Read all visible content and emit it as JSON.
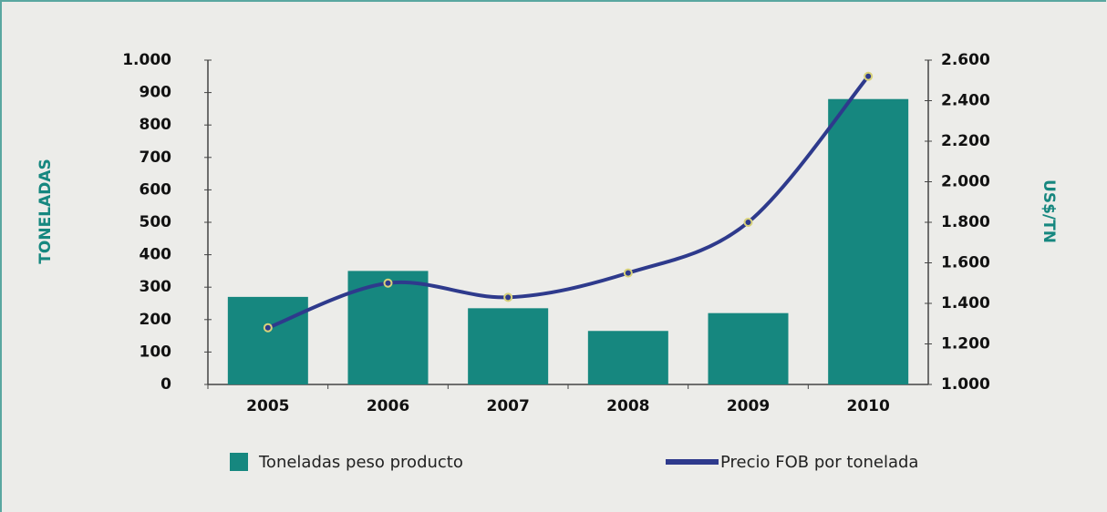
{
  "chart_data": {
    "type": "bar",
    "categories": [
      "2005",
      "2006",
      "2007",
      "2008",
      "2009",
      "2010"
    ],
    "series": [
      {
        "name": "Toneladas peso producto",
        "type": "bar",
        "color": "#16877f",
        "values": [
          270,
          350,
          235,
          165,
          220,
          880
        ]
      },
      {
        "name": "Precio FOB por tonelada",
        "type": "line",
        "axis": "y2",
        "color": "#2e3a8c",
        "values": [
          1280,
          1500,
          1430,
          1550,
          1800,
          2520
        ]
      }
    ],
    "ylabel": "TONELADAS",
    "y2label": "US$/TN",
    "ylim": [
      0,
      1000
    ],
    "yticks": [
      0,
      100,
      200,
      300,
      400,
      500,
      600,
      700,
      800,
      900,
      {
        "value": 1000,
        "label": "1.000"
      }
    ],
    "y2lim": [
      1000,
      2600
    ],
    "y2ticks": [
      {
        "value": 1000,
        "label": "1.000"
      },
      {
        "value": 1200,
        "label": "1.200"
      },
      {
        "value": 1400,
        "label": "1.400"
      },
      {
        "value": 1600,
        "label": "1.600"
      },
      {
        "value": 1800,
        "label": "1.800"
      },
      {
        "value": 2000,
        "label": "2.000"
      },
      {
        "value": 2200,
        "label": "2.200"
      },
      {
        "value": 2400,
        "label": "2.400"
      },
      {
        "value": 2600,
        "label": "2.600"
      }
    ],
    "legend": "bottom",
    "grid": false
  }
}
